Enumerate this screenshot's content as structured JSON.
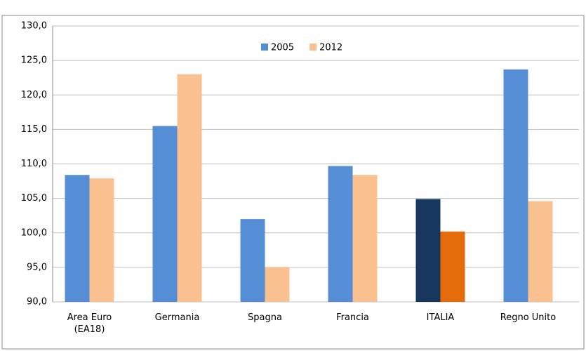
{
  "chart_data": {
    "type": "bar",
    "categories": [
      "Area Euro (EA18)",
      "Germania",
      "Spagna",
      "Francia",
      "ITALIA",
      "Regno Unito"
    ],
    "series": [
      {
        "name": "2005",
        "color": "#558ed5",
        "colors": [
          "#558ed5",
          "#558ed5",
          "#558ed5",
          "#558ed5",
          "#17375e",
          "#558ed5"
        ],
        "values": [
          108.4,
          115.5,
          102.0,
          109.7,
          104.9,
          123.7
        ]
      },
      {
        "name": "2012",
        "color": "#fac090",
        "colors": [
          "#fac090",
          "#fac090",
          "#fac090",
          "#fac090",
          "#e46c0a",
          "#fac090"
        ],
        "values": [
          107.9,
          123.0,
          95.0,
          108.4,
          100.2,
          104.6
        ]
      }
    ],
    "ylim": [
      90,
      130
    ],
    "yticks": [
      {
        "value": 90,
        "label": "90,0"
      },
      {
        "value": 95,
        "label": "95,0"
      },
      {
        "value": 100,
        "label": "100,0"
      },
      {
        "value": 105,
        "label": "105,0"
      },
      {
        "value": 110,
        "label": "110,0"
      },
      {
        "value": 115,
        "label": "115,0"
      },
      {
        "value": 120,
        "label": "120,0"
      },
      {
        "value": 125,
        "label": "125,0"
      },
      {
        "value": 130,
        "label": "130,0"
      }
    ],
    "grid": true,
    "legend": "top"
  }
}
